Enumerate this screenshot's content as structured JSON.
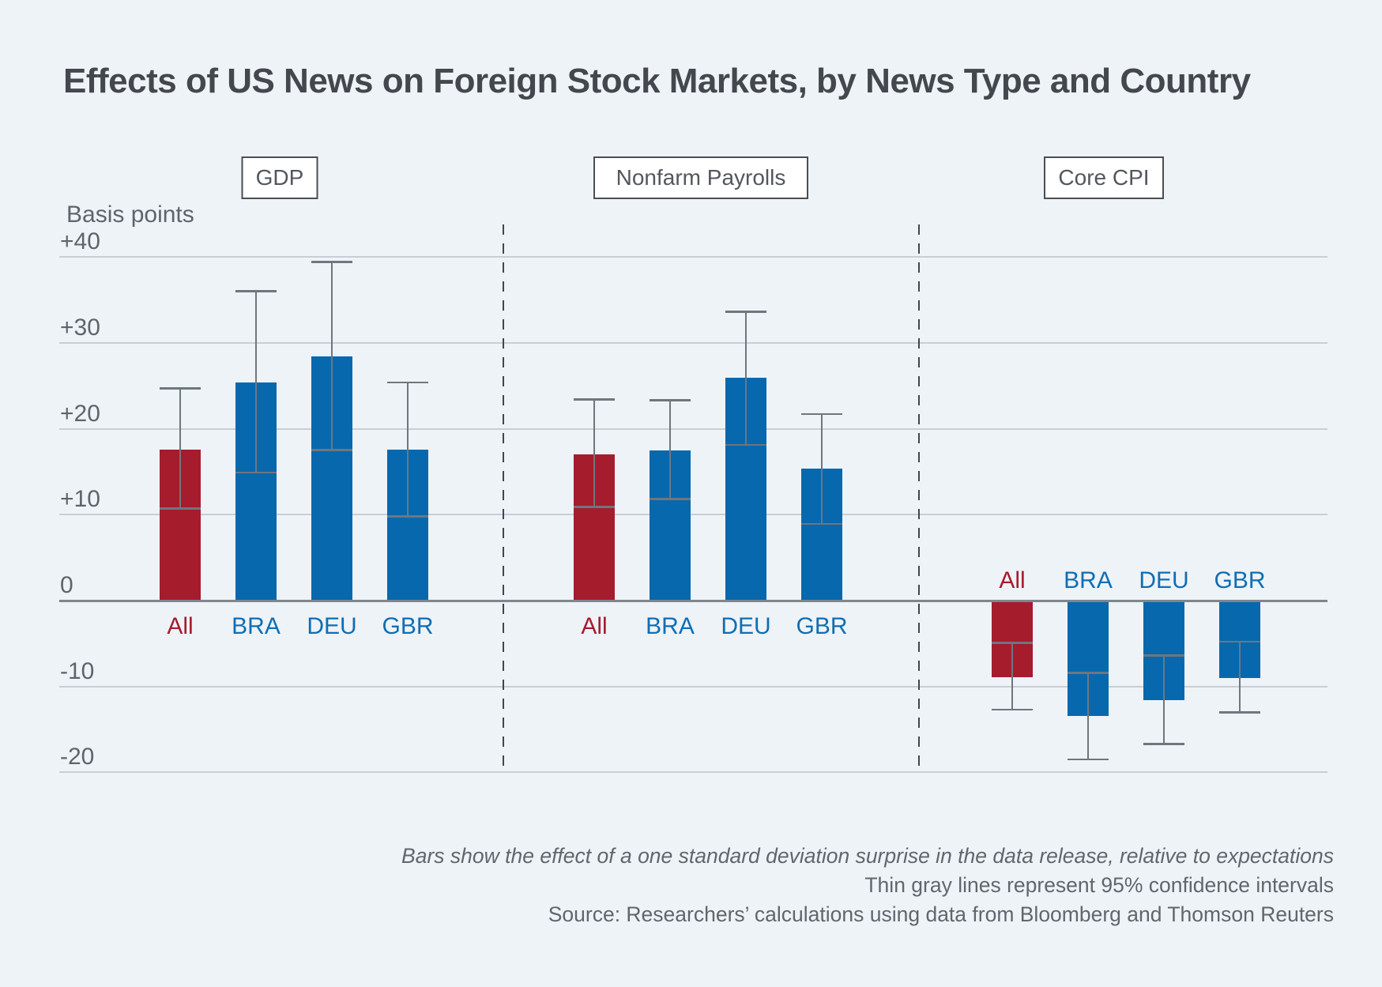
{
  "title": "Effects of US News on Foreign Stock Markets, by News Type and Country",
  "axis": {
    "unit_label": "Basis points",
    "ticks": [
      {
        "label": "+40",
        "value": 40
      },
      {
        "label": "+30",
        "value": 30
      },
      {
        "label": "+20",
        "value": 20
      },
      {
        "label": "+10",
        "value": 10
      },
      {
        "label": "0",
        "value": 0
      },
      {
        "label": "-10",
        "value": -10
      },
      {
        "label": "-20",
        "value": -20
      }
    ]
  },
  "chart_data": {
    "type": "bar",
    "title": "Effects of US News on Foreign Stock Markets, by News Type and Country",
    "ylabel": "Basis points",
    "ylim": [
      -20,
      40
    ],
    "grid": "horizontal",
    "error_bars": "95% confidence intervals",
    "categories": [
      "All",
      "BRA",
      "DEU",
      "GBR"
    ],
    "panels": [
      {
        "name": "GDP",
        "series": [
          {
            "category": "All",
            "value": 17.6,
            "ci_low": 10.7,
            "ci_high": 24.7
          },
          {
            "category": "BRA",
            "value": 25.4,
            "ci_low": 14.9,
            "ci_high": 36.0
          },
          {
            "category": "DEU",
            "value": 28.4,
            "ci_low": 17.5,
            "ci_high": 39.4
          },
          {
            "category": "GBR",
            "value": 17.6,
            "ci_low": 9.8,
            "ci_high": 25.4
          }
        ]
      },
      {
        "name": "Nonfarm Payrolls",
        "series": [
          {
            "category": "All",
            "value": 17.0,
            "ci_low": 10.9,
            "ci_high": 23.4
          },
          {
            "category": "BRA",
            "value": 17.5,
            "ci_low": 11.8,
            "ci_high": 23.3
          },
          {
            "category": "DEU",
            "value": 25.9,
            "ci_low": 18.1,
            "ci_high": 33.6
          },
          {
            "category": "GBR",
            "value": 15.4,
            "ci_low": 8.9,
            "ci_high": 21.7
          }
        ]
      },
      {
        "name": "Core CPI",
        "series": [
          {
            "category": "All",
            "value": -8.8,
            "ci_low": -12.7,
            "ci_high": -4.9
          },
          {
            "category": "BRA",
            "value": -13.3,
            "ci_low": -18.5,
            "ci_high": -8.4
          },
          {
            "category": "DEU",
            "value": -11.5,
            "ci_low": -16.7,
            "ci_high": -6.4
          },
          {
            "category": "GBR",
            "value": -8.9,
            "ci_low": -13.0,
            "ci_high": -4.8
          }
        ]
      }
    ]
  },
  "footnotes": {
    "method": "Bars show the effect of a one standard deviation surprise in the data release, relative to expectations",
    "ci": "Thin gray lines represent 95% confidence intervals",
    "source": "Source: Researchers’ calculations using data from Bloomberg and Thomson Reuters"
  },
  "colors": {
    "background": "#EEF3F8",
    "all_bar": "#A51C2D",
    "country_bar": "#0768AD",
    "all_label": "#A51C2D",
    "country_label": "#0F6EB4",
    "whisker": "#6F767E",
    "gridline": "#C9CED6",
    "zero_line": "#7F868D",
    "text_gray": "#5E646B"
  }
}
